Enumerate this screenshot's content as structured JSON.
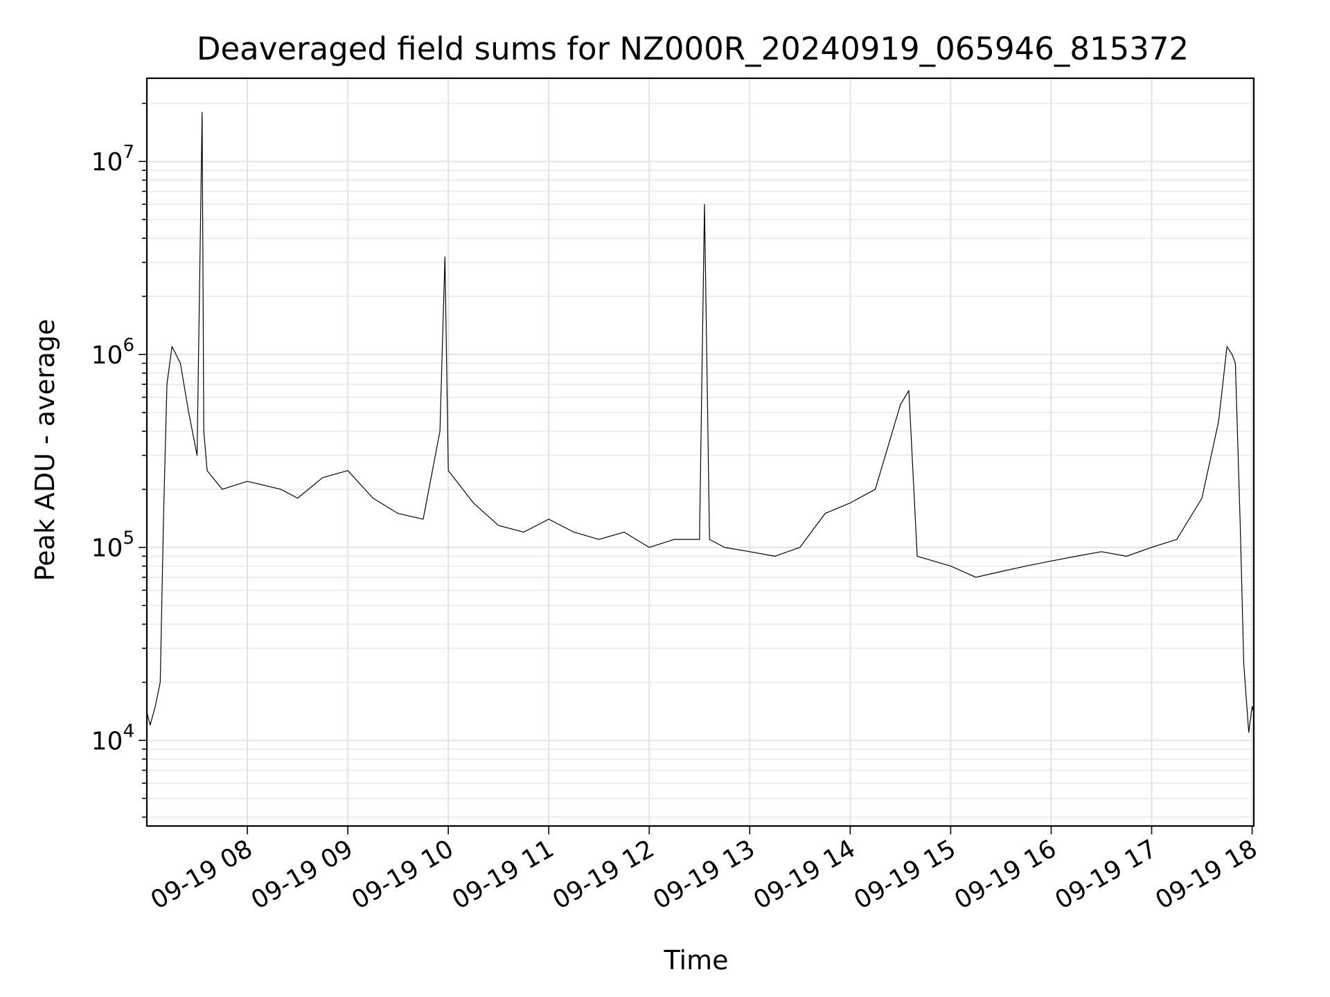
{
  "chart_data": {
    "type": "line",
    "title": "Deaveraged field sums for NZ000R_20240919_065946_815372",
    "xlabel": "Time",
    "ylabel": "Peak ADU - average",
    "yscale": "log",
    "grid": "major and minor, light gray",
    "line_color": "#000000",
    "xlim": [
      "2024-09-19 07:00",
      "2024-09-19 18:01"
    ],
    "ylim": [
      3600,
      27000000
    ],
    "x_ticks": [
      {
        "value": "2024-09-19 08:00",
        "label": "09-19 08"
      },
      {
        "value": "2024-09-19 09:00",
        "label": "09-19 09"
      },
      {
        "value": "2024-09-19 10:00",
        "label": "09-19 10"
      },
      {
        "value": "2024-09-19 11:00",
        "label": "09-19 11"
      },
      {
        "value": "2024-09-19 12:00",
        "label": "09-19 12"
      },
      {
        "value": "2024-09-19 13:00",
        "label": "09-19 13"
      },
      {
        "value": "2024-09-19 14:00",
        "label": "09-19 14"
      },
      {
        "value": "2024-09-19 15:00",
        "label": "09-19 15"
      },
      {
        "value": "2024-09-19 16:00",
        "label": "09-19 16"
      },
      {
        "value": "2024-09-19 17:00",
        "label": "09-19 17"
      },
      {
        "value": "2024-09-19 18:00",
        "label": "09-19 18"
      }
    ],
    "y_ticks": [
      {
        "value": 10000,
        "base": "10",
        "exp": "4"
      },
      {
        "value": 100000,
        "base": "10",
        "exp": "5"
      },
      {
        "value": 1000000,
        "base": "10",
        "exp": "6"
      },
      {
        "value": 10000000,
        "base": "10",
        "exp": "7"
      }
    ],
    "series": [
      {
        "name": "",
        "x": [
          "2024-09-19 07:00",
          "2024-09-19 07:02",
          "2024-09-19 07:05",
          "2024-09-19 07:08",
          "2024-09-19 07:10",
          "2024-09-19 07:12",
          "2024-09-19 07:15",
          "2024-09-19 07:20",
          "2024-09-19 07:25",
          "2024-09-19 07:30",
          "2024-09-19 07:33",
          "2024-09-19 07:34",
          "2024-09-19 07:36",
          "2024-09-19 07:45",
          "2024-09-19 08:00",
          "2024-09-19 08:20",
          "2024-09-19 08:30",
          "2024-09-19 08:45",
          "2024-09-19 09:00",
          "2024-09-19 09:15",
          "2024-09-19 09:30",
          "2024-09-19 09:45",
          "2024-09-19 09:55",
          "2024-09-19 09:58",
          "2024-09-19 10:00",
          "2024-09-19 10:15",
          "2024-09-19 10:30",
          "2024-09-19 10:45",
          "2024-09-19 11:00",
          "2024-09-19 11:15",
          "2024-09-19 11:30",
          "2024-09-19 11:45",
          "2024-09-19 12:00",
          "2024-09-19 12:15",
          "2024-09-19 12:30",
          "2024-09-19 12:33",
          "2024-09-19 12:36",
          "2024-09-19 12:45",
          "2024-09-19 13:00",
          "2024-09-19 13:15",
          "2024-09-19 13:30",
          "2024-09-19 13:45",
          "2024-09-19 14:00",
          "2024-09-19 14:15",
          "2024-09-19 14:30",
          "2024-09-19 14:35",
          "2024-09-19 14:40",
          "2024-09-19 15:00",
          "2024-09-19 15:15",
          "2024-09-19 15:30",
          "2024-09-19 15:45",
          "2024-09-19 16:00",
          "2024-09-19 16:15",
          "2024-09-19 16:30",
          "2024-09-19 16:45",
          "2024-09-19 17:00",
          "2024-09-19 17:15",
          "2024-09-19 17:30",
          "2024-09-19 17:40",
          "2024-09-19 17:45",
          "2024-09-19 17:48",
          "2024-09-19 17:50",
          "2024-09-19 17:53",
          "2024-09-19 17:55",
          "2024-09-19 17:58",
          "2024-09-19 18:00",
          "2024-09-19 18:01"
        ],
        "y": [
          14000,
          12000,
          15000,
          20000,
          150000,
          700000,
          1100000,
          900000,
          500000,
          300000,
          18000000,
          400000,
          250000,
          200000,
          220000,
          200000,
          180000,
          230000,
          250000,
          180000,
          150000,
          140000,
          400000,
          3200000,
          250000,
          170000,
          130000,
          120000,
          140000,
          120000,
          110000,
          120000,
          100000,
          110000,
          110000,
          6000000,
          110000,
          100000,
          95000,
          90000,
          100000,
          150000,
          170000,
          200000,
          550000,
          650000,
          90000,
          80000,
          70000,
          75000,
          80000,
          85000,
          90000,
          95000,
          90000,
          100000,
          110000,
          180000,
          450000,
          1100000,
          1000000,
          900000,
          120000,
          25000,
          11000,
          15000,
          14000
        ]
      }
    ]
  }
}
